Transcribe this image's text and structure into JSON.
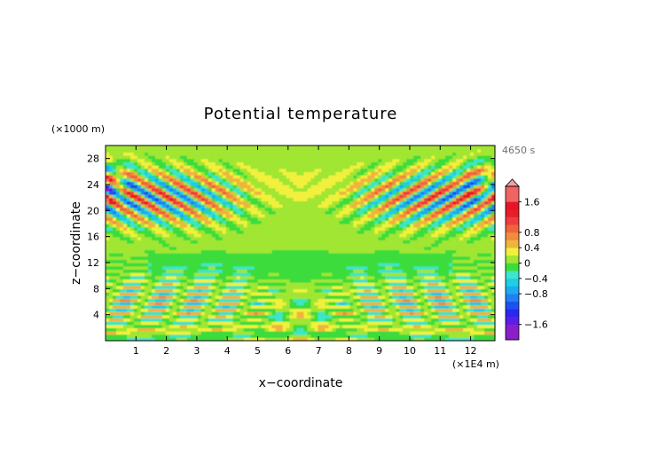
{
  "chart_data": {
    "type": "heatmap",
    "title": "Potential temperature",
    "xlabel": "x−coordinate",
    "ylabel": "z−coordinate",
    "x_unit": "(×1E4 m)",
    "y_unit": "(×1000 m)",
    "time_label": "4650 s",
    "xlim": [
      0,
      12.8
    ],
    "ylim": [
      0,
      30
    ],
    "x_ticks": [
      1,
      2,
      3,
      4,
      5,
      6,
      7,
      8,
      9,
      10,
      11,
      12
    ],
    "y_ticks": [
      4,
      8,
      12,
      16,
      20,
      24,
      28
    ],
    "colorbar": {
      "tick_values": [
        1.6,
        0.8,
        0.4,
        0,
        -0.4,
        -0.8,
        -1.6
      ],
      "tick_labels": [
        "1.6",
        "0.8",
        "0.4",
        "0",
        "−0.4",
        "−0.8",
        "−1.6"
      ],
      "levels": [
        {
          "min": -2.0,
          "max": -1.6,
          "color": "#8a1ec8"
        },
        {
          "min": -1.6,
          "max": -1.4,
          "color": "#5a1ee6"
        },
        {
          "min": -1.4,
          "max": -1.2,
          "color": "#2828f0"
        },
        {
          "min": -1.2,
          "max": -1.0,
          "color": "#1e50f0"
        },
        {
          "min": -1.0,
          "max": -0.8,
          "color": "#1e82f0"
        },
        {
          "min": -0.8,
          "max": -0.6,
          "color": "#1eaaf0"
        },
        {
          "min": -0.6,
          "max": -0.4,
          "color": "#1ecde6"
        },
        {
          "min": -0.4,
          "max": -0.2,
          "color": "#3ce6c8"
        },
        {
          "min": -0.2,
          "max": 0.0,
          "color": "#3cdc3c"
        },
        {
          "min": 0.0,
          "max": 0.2,
          "color": "#a0e632"
        },
        {
          "min": 0.2,
          "max": 0.4,
          "color": "#f0f03c"
        },
        {
          "min": 0.4,
          "max": 0.6,
          "color": "#f0b43c"
        },
        {
          "min": 0.6,
          "max": 0.8,
          "color": "#f08c3c"
        },
        {
          "min": 0.8,
          "max": 1.0,
          "color": "#f0643c"
        },
        {
          "min": 1.0,
          "max": 1.2,
          "color": "#f03c3c"
        },
        {
          "min": 1.2,
          "max": 1.4,
          "color": "#e61e28"
        },
        {
          "min": 1.4,
          "max": 1.6,
          "color": "#e61428"
        },
        {
          "min": 1.6,
          "max": 2.0,
          "color": "#f06464"
        }
      ],
      "extend": "both"
    }
  }
}
